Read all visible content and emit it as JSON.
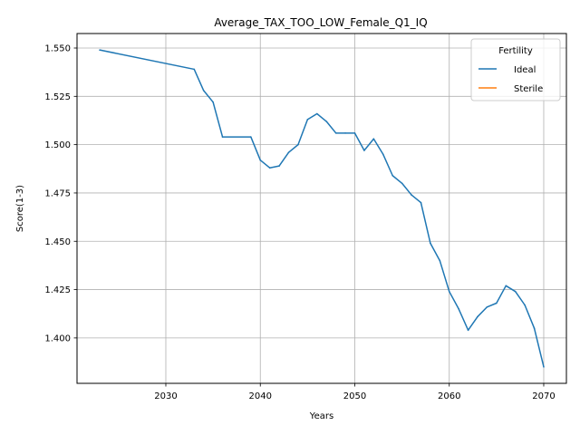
{
  "chart_data": {
    "type": "line",
    "title": "Average_TAX_TOO_LOW_Female_Q1_IQ",
    "xlabel": "Years",
    "ylabel": "Score(1-3)",
    "xlim": [
      2020.6,
      2072.4
    ],
    "ylim": [
      1.3765,
      1.5575
    ],
    "xticks": [
      2030,
      2040,
      2050,
      2060,
      2070
    ],
    "yticks": [
      1.4,
      1.425,
      1.45,
      1.475,
      1.5,
      1.525,
      1.55
    ],
    "ytick_labels": [
      "1.400",
      "1.425",
      "1.450",
      "1.475",
      "1.500",
      "1.525",
      "1.550"
    ],
    "grid": true,
    "legend": {
      "title": "Fertility",
      "position": "top-right"
    },
    "series": [
      {
        "name": "Ideal",
        "color": "#1f77b4",
        "x": [
          2023,
          2033,
          2034,
          2035,
          2036,
          2039,
          2040,
          2041,
          2042,
          2043,
          2044,
          2045,
          2046,
          2047,
          2048,
          2049,
          2050,
          2051,
          2052,
          2053,
          2054,
          2055,
          2056,
          2057,
          2058,
          2059,
          2060,
          2061,
          2062,
          2063,
          2064,
          2065,
          2066,
          2067,
          2068,
          2069,
          2070
        ],
        "y": [
          1.549,
          1.539,
          1.528,
          1.522,
          1.504,
          1.504,
          1.492,
          1.488,
          1.489,
          1.496,
          1.5,
          1.513,
          1.516,
          1.512,
          1.506,
          1.506,
          1.506,
          1.497,
          1.503,
          1.495,
          1.484,
          1.48,
          1.474,
          1.47,
          1.449,
          1.44,
          1.424,
          1.415,
          1.404,
          1.411,
          1.416,
          1.418,
          1.427,
          1.424,
          1.417,
          1.405,
          1.385
        ]
      },
      {
        "name": "Sterile",
        "color": "#ff7f0e",
        "x": [],
        "y": []
      }
    ]
  }
}
